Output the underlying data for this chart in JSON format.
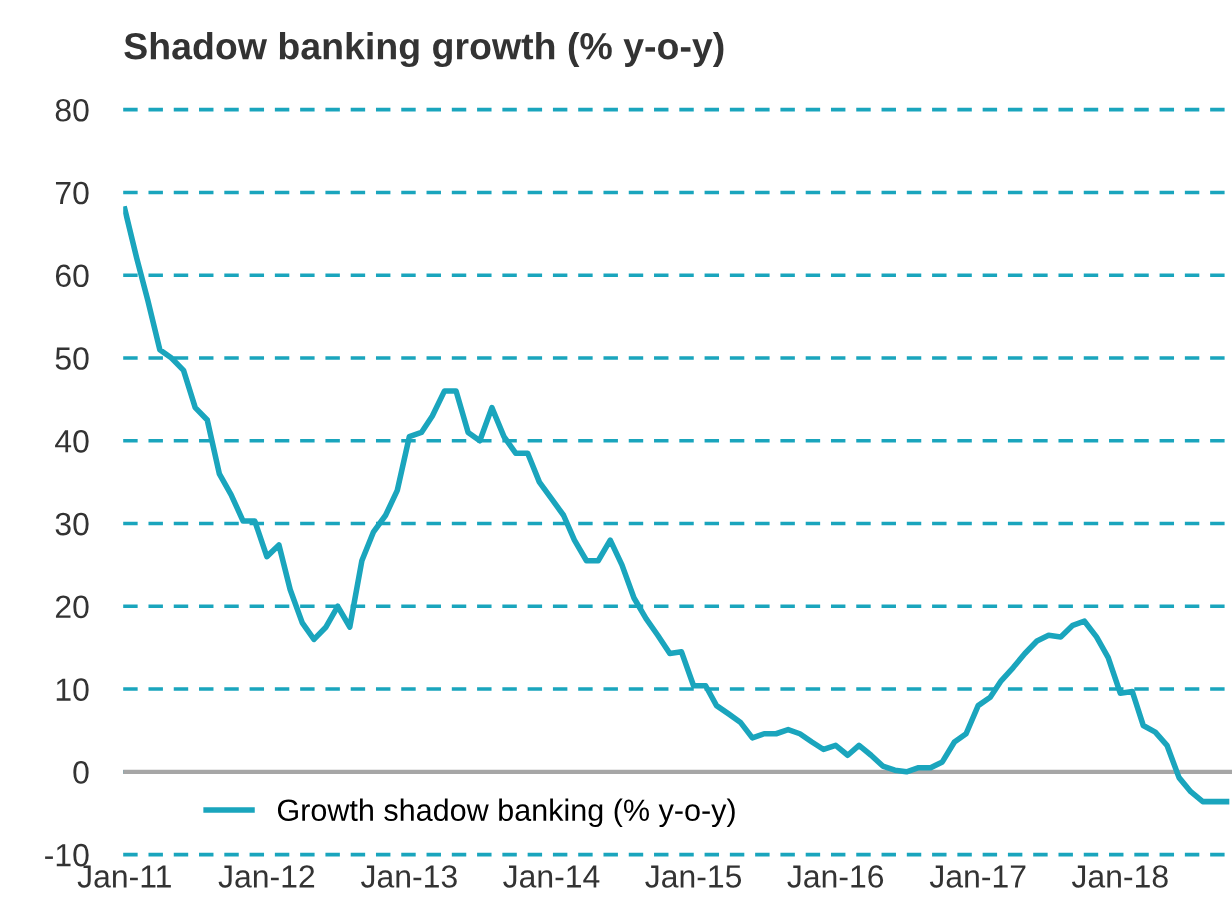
{
  "chart_data": {
    "type": "line",
    "title": "Shadow banking growth (% y-o-y)",
    "x": [
      "2011-01",
      "2011-02",
      "2011-03",
      "2011-04",
      "2011-05",
      "2011-06",
      "2011-07",
      "2011-08",
      "2011-09",
      "2011-10",
      "2011-11",
      "2011-12",
      "2012-01",
      "2012-02",
      "2012-03",
      "2012-04",
      "2012-05",
      "2012-06",
      "2012-07",
      "2012-08",
      "2012-09",
      "2012-10",
      "2012-11",
      "2012-12",
      "2013-01",
      "2013-02",
      "2013-03",
      "2013-04",
      "2013-05",
      "2013-06",
      "2013-07",
      "2013-08",
      "2013-09",
      "2013-10",
      "2013-11",
      "2013-12",
      "2014-01",
      "2014-02",
      "2014-03",
      "2014-04",
      "2014-05",
      "2014-06",
      "2014-07",
      "2014-08",
      "2014-09",
      "2014-10",
      "2014-11",
      "2014-12",
      "2015-01",
      "2015-02",
      "2015-03",
      "2015-04",
      "2015-05",
      "2015-06",
      "2015-07",
      "2015-08",
      "2015-09",
      "2015-10",
      "2015-11",
      "2015-12",
      "2016-01",
      "2016-02",
      "2016-03",
      "2016-04",
      "2016-05",
      "2016-06",
      "2016-07",
      "2016-08",
      "2016-09",
      "2016-10",
      "2016-11",
      "2016-12",
      "2017-01",
      "2017-02",
      "2017-03",
      "2017-04",
      "2017-05",
      "2017-06",
      "2017-07",
      "2017-08",
      "2017-09",
      "2017-10",
      "2017-11",
      "2017-12",
      "2018-01",
      "2018-02",
      "2018-03",
      "2018-04",
      "2018-05",
      "2018-06",
      "2018-07",
      "2018-08",
      "2018-09",
      "2018-10"
    ],
    "series": [
      {
        "name": "Growth shadow banking (% y-o-y)",
        "color": "#1aa5bd",
        "values": [
          68,
          62,
          57,
          51,
          50,
          48.5,
          44,
          42.5,
          36,
          33.5,
          30.3,
          30.3,
          26,
          27.4,
          22,
          18,
          16,
          17.5,
          20,
          17.5,
          25.5,
          29,
          31,
          34,
          40.5,
          41,
          43,
          46,
          46,
          41,
          40,
          44,
          40.5,
          38.5,
          38.5,
          35,
          33,
          31,
          28,
          25.5,
          25.5,
          28,
          25,
          21,
          18.5,
          16.5,
          14.3,
          14.5,
          10.4,
          10.4,
          8,
          7,
          6,
          4.1,
          4.6,
          4.6,
          5.1,
          4.6,
          3.6,
          2.7,
          3.2,
          2,
          3.2,
          2,
          0.7,
          0.2,
          0,
          0.5,
          0.5,
          1.2,
          3.6,
          4.6,
          8,
          9,
          11,
          12.6,
          14.3,
          15.8,
          16.5,
          16.3,
          17.7,
          18.2,
          16.3,
          13.8,
          9.5,
          9.7,
          5.6,
          4.8,
          3.2,
          -0.7,
          -2.4,
          -3.6,
          -3.6,
          -3.6
        ]
      }
    ],
    "xlim": [
      "2010-12-28",
      "2018-10-15"
    ],
    "xticks": [
      {
        "value": "2011-01-01",
        "label": "Jan-11"
      },
      {
        "value": "2012-01-01",
        "label": "Jan-12"
      },
      {
        "value": "2013-01-01",
        "label": "Jan-13"
      },
      {
        "value": "2014-01-01",
        "label": "Jan-14"
      },
      {
        "value": "2015-01-01",
        "label": "Jan-15"
      },
      {
        "value": "2016-01-01",
        "label": "Jan-16"
      },
      {
        "value": "2017-01-01",
        "label": "Jan-17"
      },
      {
        "value": "2018-01-01",
        "label": "Jan-18"
      }
    ],
    "ylim": [
      -10,
      80
    ],
    "yticks": [
      -10,
      0,
      10,
      20,
      30,
      40,
      50,
      60,
      70,
      80
    ],
    "grid": "y",
    "legend": "bottom left",
    "ref_lines": [
      {
        "axis": "y",
        "value": 0,
        "color": "#a6a6a6",
        "line_style": "solid"
      }
    ]
  }
}
